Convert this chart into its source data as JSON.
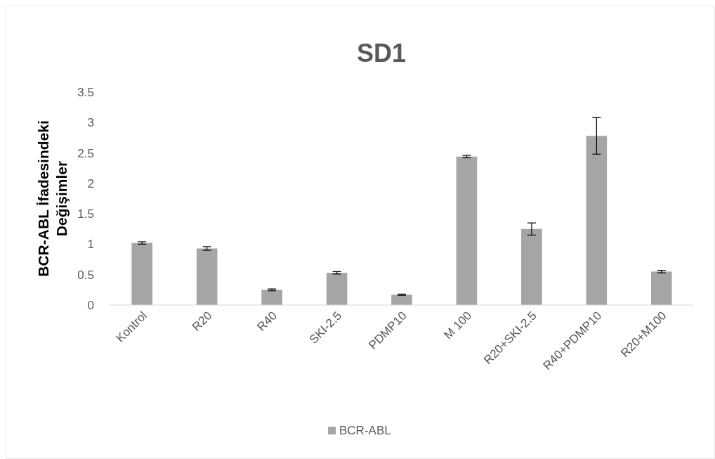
{
  "chart_data": {
    "type": "bar",
    "title": "SD1",
    "ylabel": "BCR-ABL İfadesindeki Değişimler",
    "categories": [
      "Kontrol",
      "R20",
      "R40",
      "SKI-2.5",
      "PDMP10",
      "M 100",
      "R20+SKI-2.5",
      "R40+PDMP10",
      "R20+M100"
    ],
    "series": [
      {
        "name": "BCR-ABL",
        "color": "#a5a5a5",
        "values": [
          1.02,
          0.93,
          0.25,
          0.53,
          0.17,
          2.44,
          1.25,
          2.78,
          0.55
        ],
        "errors": [
          0.02,
          0.03,
          0.015,
          0.02,
          0.01,
          0.02,
          0.1,
          0.3,
          0.02
        ]
      }
    ],
    "ylim": [
      0,
      3.5
    ],
    "yticks": [
      0,
      0.5,
      1,
      1.5,
      2,
      2.5,
      3,
      3.5
    ],
    "grid": false,
    "legend": "bottom"
  }
}
